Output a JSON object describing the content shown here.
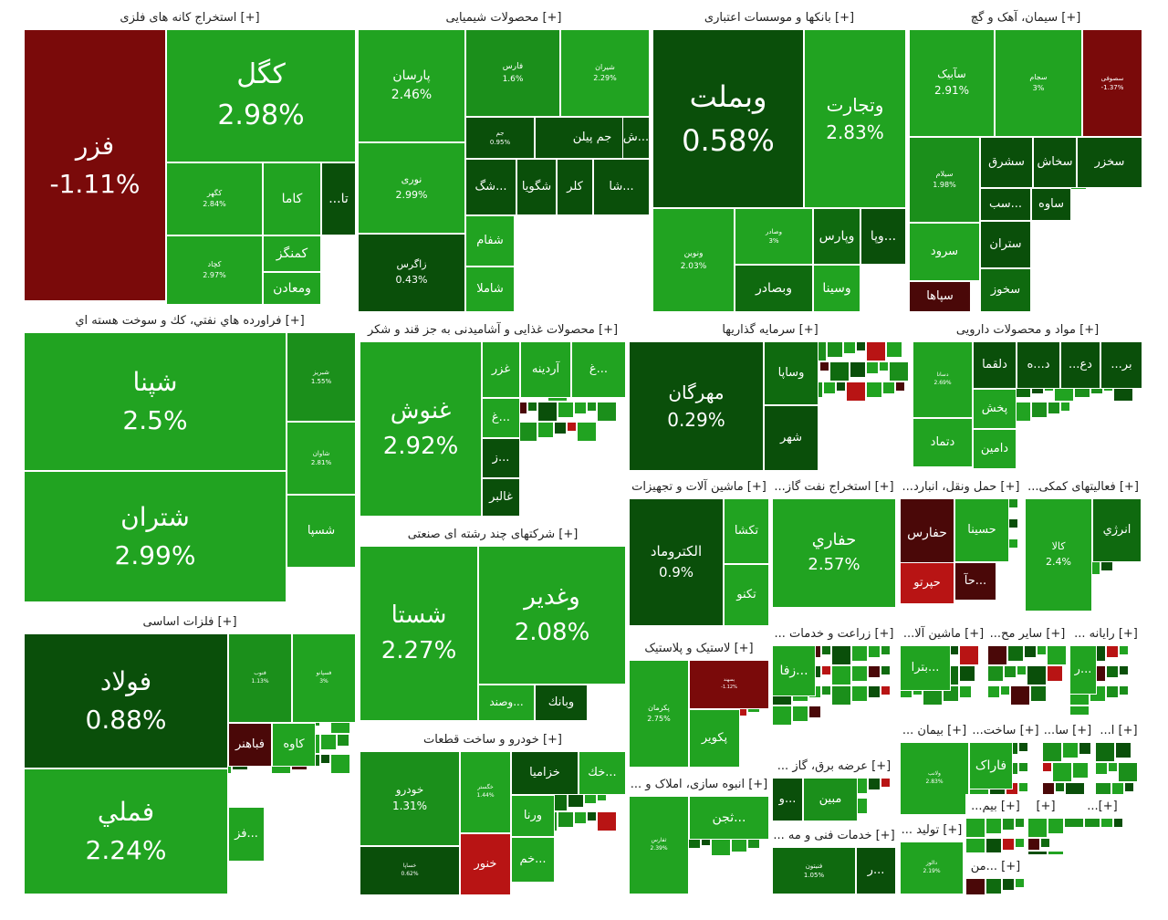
{
  "colors": {
    "up": "#21a321",
    "up2": "#1b8f1b",
    "up3": "#0f6a0f",
    "up4": "#0a4f0a",
    "down": "#7a0a0a",
    "down2": "#b81414",
    "down3": "#4a0808"
  },
  "chart_data": {
    "type": "treemap",
    "sectors": [
      {
        "label": "[+] استخراج کانه های فلزی",
        "tiles": [
          {
            "name": "فزر",
            "value": "-1.11%"
          },
          {
            "name": "کگل",
            "value": "2.98%"
          },
          {
            "name": "کگهر",
            "value": "2.84%"
          },
          {
            "name": "کچاد",
            "value": "2.97%"
          },
          {
            "name": "کاما"
          },
          {
            "name": "...تا"
          },
          {
            "name": "کمنگز"
          },
          {
            "name": "ومعادن"
          }
        ]
      },
      {
        "label": "[+] محصولات شیمیایی",
        "tiles": [
          {
            "name": "پارسان",
            "value": "2.46%"
          },
          {
            "name": "نوری",
            "value": "2.99%"
          },
          {
            "name": "زاگرس",
            "value": "0.43%"
          },
          {
            "name": "فارس",
            "value": "1.6%"
          },
          {
            "name": "شیران",
            "value": "2.29%"
          },
          {
            "name": "جم پیلن"
          },
          {
            "name": "ش..."
          },
          {
            "name": "جم",
            "value": "0.95%"
          },
          {
            "name": "شگ..."
          },
          {
            "name": "شگویا"
          },
          {
            "name": "کلر"
          },
          {
            "name": "شا..."
          },
          {
            "name": "شفام"
          },
          {
            "name": "شاملا"
          }
        ]
      },
      {
        "label": "[+] بانکها و موسسات اعتباری",
        "tiles": [
          {
            "name": "وبملت",
            "value": "0.58%"
          },
          {
            "name": "وتجارت",
            "value": "2.83%"
          },
          {
            "name": "ونوین",
            "value": "2.03%"
          },
          {
            "name": "وصادر",
            "value": "3%"
          },
          {
            "name": "وپارس"
          },
          {
            "name": "وپا..."
          },
          {
            "name": "وبصادر"
          },
          {
            "name": "وسینا"
          }
        ]
      },
      {
        "label": "[+] سیمان، آهک و گچ",
        "tiles": [
          {
            "name": "سآبیک",
            "value": "2.91%"
          },
          {
            "name": "سجام",
            "value": "3%"
          },
          {
            "name": "سصوفی",
            "value": "-1.37%"
          },
          {
            "name": "سیلام",
            "value": "1.98%"
          },
          {
            "name": "سشرق"
          },
          {
            "name": "سخاش"
          },
          {
            "name": "سخزر"
          },
          {
            "name": "سب..."
          },
          {
            "name": "ساوه"
          },
          {
            "name": "سرود"
          },
          {
            "name": "ستران"
          },
          {
            "name": "سپاها"
          },
          {
            "name": "سخوز"
          }
        ]
      },
      {
        "label": "[+] فراورده هاي نفتي، كك و سوخت هسته اي",
        "tiles": [
          {
            "name": "شپنا",
            "value": "2.5%"
          },
          {
            "name": "شتران",
            "value": "2.99%"
          },
          {
            "name": "شبریز",
            "value": "1.55%"
          },
          {
            "name": "شاوان",
            "value": "2.81%"
          },
          {
            "name": "شسپا"
          }
        ]
      },
      {
        "label": "[+] محصولات غذایی و آشامیدنی به جز قند و شکر",
        "tiles": [
          {
            "name": "غنوش",
            "value": "2.92%"
          },
          {
            "name": "غزر"
          },
          {
            "name": "آردینه"
          },
          {
            "name": "غ..."
          },
          {
            "name": "غ..."
          },
          {
            "name": "ز..."
          },
          {
            "name": "غالبر"
          }
        ]
      },
      {
        "label": "[+] سرمایه گذاریها",
        "tiles": [
          {
            "name": "مهرگان",
            "value": "0.29%"
          },
          {
            "name": "وساپا"
          },
          {
            "name": "شهر"
          }
        ]
      },
      {
        "label": "[+] مواد و محصولات دارویی",
        "tiles": [
          {
            "name": "دسانا",
            "value": "2.69%"
          },
          {
            "name": "دلقما"
          },
          {
            "name": "د...ه"
          },
          {
            "name": "...دع"
          },
          {
            "name": "...بر"
          },
          {
            "name": "پخش"
          },
          {
            "name": "دتماد"
          },
          {
            "name": "دامین"
          }
        ]
      },
      {
        "label": "[+] فلزات اساسی",
        "tiles": [
          {
            "name": "فولاد",
            "value": "0.88%"
          },
          {
            "name": "فملي",
            "value": "2.24%"
          },
          {
            "name": "فنوب",
            "value": "1.13%"
          },
          {
            "name": "فسپانو",
            "value": "3%"
          },
          {
            "name": "فباهنر"
          },
          {
            "name": "کاوه"
          },
          {
            "name": "فز..."
          }
        ]
      },
      {
        "label": "[+] شرکتهای چند رشته ای صنعتی",
        "tiles": [
          {
            "name": "شستا",
            "value": "2.27%"
          },
          {
            "name": "وغدير",
            "value": "2.08%"
          },
          {
            "name": "وصند..."
          },
          {
            "name": "وبانك"
          }
        ]
      },
      {
        "label": "[+] ماشین آلات و تجهیزات",
        "tiles": [
          {
            "name": "الكتروماد",
            "value": "0.9%"
          },
          {
            "name": "تكشا"
          },
          {
            "name": "تكنو"
          }
        ]
      },
      {
        "label": "[+] استخراج نفت گاز...",
        "tiles": [
          {
            "name": "حفاري",
            "value": "2.57%"
          }
        ]
      },
      {
        "label": "[+] حمل ونقل، انبارد...",
        "tiles": [
          {
            "name": "حفارس"
          },
          {
            "name": "حسينا"
          },
          {
            "name": "حآ..."
          },
          {
            "name": "حپرتو"
          }
        ]
      },
      {
        "label": "[+] فعالیتهای کمکی...",
        "tiles": [
          {
            "name": "كالا",
            "value": "2.4%"
          },
          {
            "name": "انرژي"
          }
        ]
      },
      {
        "label": "[+] خودرو و ساخت قطعات",
        "tiles": [
          {
            "name": "خودرو",
            "value": "1.31%"
          },
          {
            "name": "خگستر",
            "value": "1.44%"
          },
          {
            "name": "خزامیا"
          },
          {
            "name": "خك..."
          },
          {
            "name": "خساپا",
            "value": "0.62%"
          },
          {
            "name": "ورنا"
          },
          {
            "name": "خم..."
          },
          {
            "name": "خنور"
          }
        ]
      },
      {
        "label": "[+] لاستیک و پلاستیک",
        "tiles": [
          {
            "name": "پكرمان",
            "value": "2.75%"
          },
          {
            "name": "پسهند",
            "value": "-1.12%"
          },
          {
            "name": "پكوير"
          }
        ]
      },
      {
        "label": "[+] انبوه سازی، املاک و ...",
        "tiles": [
          {
            "name": "ثفارس",
            "value": "2.39%"
          },
          {
            "name": "ثجن..."
          }
        ]
      },
      {
        "label": "[+] زراعت و خدمات ...",
        "tiles": [
          {
            "name": "زفا..."
          }
        ]
      },
      {
        "label": "[+] ماشین آلا...",
        "tiles": [
          {
            "name": "بترا..."
          }
        ]
      },
      {
        "label": "[+] سایر مح...",
        "tiles": []
      },
      {
        "label": "[+] رایانه ...",
        "tiles": [
          {
            "name": "ر..."
          }
        ]
      },
      {
        "label": "[+] عرضه برق، گاز ...",
        "tiles": [
          {
            "name": "و..."
          },
          {
            "name": "مبين"
          }
        ]
      },
      {
        "label": "[+] خدمات فنی و مه ...",
        "tiles": [
          {
            "name": "فنيتون",
            "value": "1.05%"
          },
          {
            "name": "ر..."
          }
        ]
      },
      {
        "label": "[+] بیمان ...",
        "tiles": [
          {
            "name": "ولانب",
            "value": "2.83%"
          }
        ]
      },
      {
        "label": "[+] ساخت...",
        "tiles": [
          {
            "name": "فاراک"
          }
        ]
      },
      {
        "label": "[+] سا...",
        "tiles": []
      },
      {
        "label": "[+] ا...",
        "tiles": []
      },
      {
        "label": "[+] تولید ...",
        "tiles": [
          {
            "name": "دالوز",
            "value": "2.19%"
          }
        ]
      },
      {
        "label": "[+] بیم...",
        "tiles": []
      },
      {
        "label": "[+]",
        "tiles": []
      },
      {
        "label": "[+]...",
        "tiles": []
      },
      {
        "label": "[+] ...من",
        "tiles": []
      }
    ]
  }
}
